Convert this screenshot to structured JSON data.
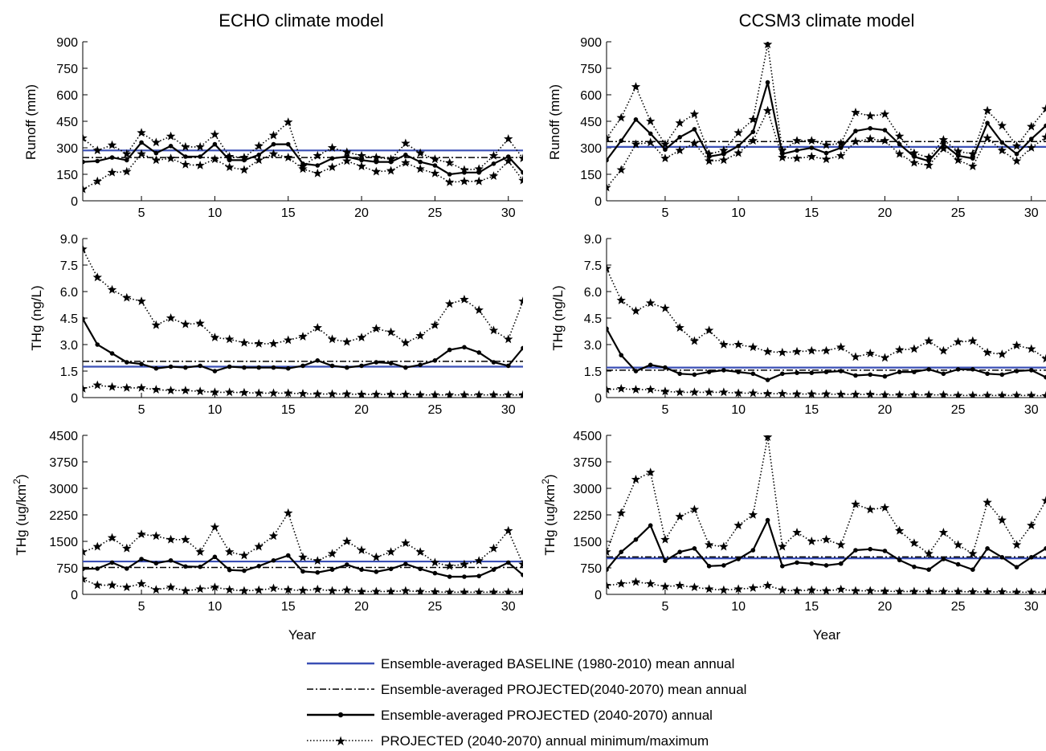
{
  "column_titles": [
    "ECHO climate model",
    "CCSM3 climate model"
  ],
  "xlabel": "Year",
  "ylabels": {
    "runoff": "Runoff (mm)",
    "thg_conc": "THg (ng/L)",
    "thg_flux_main": "THg (ug/km",
    "thg_flux_sup": "2",
    "thg_flux_end": ")"
  },
  "legend": [
    {
      "label": "Ensemble-averaged BASELINE (1980-2010) mean annual",
      "style": "baseline"
    },
    {
      "label": "Ensemble-averaged PROJECTED(2040-2070) mean annual",
      "style": "projmean"
    },
    {
      "label": "Ensemble-averaged PROJECTED (2040-2070) annual",
      "style": "annual"
    },
    {
      "label": "PROJECTED (2040-2070) annual minimum/maximum",
      "style": "minmax"
    }
  ],
  "colors": {
    "baseline": "#3a4fb5",
    "black": "#000000"
  },
  "chart_data": [
    {
      "id": "echo-runoff",
      "type": "line",
      "model": "ECHO climate model",
      "ylabel": "Runoff (mm)",
      "xlabel": "",
      "xlim": [
        1,
        31
      ],
      "ylim": [
        0,
        900
      ],
      "xticks": [
        5,
        10,
        15,
        20,
        25,
        30
      ],
      "yticks": [
        "0",
        "150",
        "300",
        "450",
        "600",
        "750",
        "900"
      ],
      "yticks_values": [
        0,
        150,
        300,
        450,
        600,
        750,
        900
      ],
      "baseline_mean": 285,
      "projected_mean": 245,
      "series": [
        {
          "role": "annual",
          "values": [
            220,
            225,
            245,
            230,
            330,
            270,
            310,
            250,
            250,
            320,
            230,
            230,
            260,
            320,
            320,
            210,
            200,
            240,
            250,
            230,
            220,
            220,
            260,
            220,
            200,
            150,
            160,
            160,
            210,
            250,
            160
          ]
        },
        {
          "role": "max",
          "values": [
            355,
            285,
            315,
            265,
            385,
            330,
            365,
            305,
            305,
            375,
            250,
            245,
            310,
            370,
            445,
            195,
            255,
            300,
            275,
            255,
            245,
            235,
            325,
            270,
            235,
            215,
            175,
            180,
            255,
            350,
            240
          ]
        },
        {
          "role": "min",
          "values": [
            65,
            110,
            160,
            165,
            265,
            230,
            240,
            205,
            200,
            235,
            190,
            175,
            230,
            265,
            245,
            180,
            155,
            190,
            225,
            195,
            165,
            170,
            215,
            180,
            155,
            105,
            110,
            110,
            140,
            225,
            115
          ]
        }
      ]
    },
    {
      "id": "ccsm3-runoff",
      "type": "line",
      "model": "CCSM3 climate model",
      "ylabel": "Runoff (mm)",
      "xlabel": "",
      "xlim": [
        1,
        31
      ],
      "ylim": [
        0,
        900
      ],
      "xticks": [
        5,
        10,
        15,
        20,
        25,
        30
      ],
      "yticks": [
        "0",
        "150",
        "300",
        "450",
        "600",
        "750",
        "900"
      ],
      "yticks_values": [
        0,
        150,
        300,
        450,
        600,
        750,
        900
      ],
      "baseline_mean": 305,
      "projected_mean": 335,
      "series": [
        {
          "role": "annual",
          "values": [
            230,
            340,
            460,
            380,
            290,
            360,
            405,
            250,
            265,
            310,
            390,
            670,
            265,
            285,
            300,
            270,
            300,
            395,
            410,
            400,
            320,
            250,
            225,
            320,
            255,
            240,
            440,
            330,
            265,
            350,
            425
          ]
        },
        {
          "role": "max",
          "values": [
            355,
            470,
            645,
            450,
            320,
            440,
            490,
            265,
            285,
            385,
            460,
            885,
            285,
            340,
            340,
            315,
            325,
            500,
            480,
            490,
            365,
            270,
            245,
            345,
            280,
            265,
            510,
            425,
            310,
            420,
            520
          ]
        },
        {
          "role": "min",
          "values": [
            75,
            175,
            320,
            330,
            240,
            285,
            325,
            225,
            230,
            270,
            340,
            510,
            245,
            240,
            250,
            235,
            255,
            335,
            350,
            340,
            265,
            215,
            200,
            295,
            230,
            195,
            355,
            285,
            225,
            300,
            360
          ]
        }
      ]
    },
    {
      "id": "echo-thg-conc",
      "type": "line",
      "model": "ECHO climate model",
      "ylabel": "THg (ng/L)",
      "xlabel": "",
      "xlim": [
        1,
        31
      ],
      "ylim": [
        0,
        9
      ],
      "xticks": [
        5,
        10,
        15,
        20,
        25,
        30
      ],
      "yticks": [
        "0",
        "1.5",
        "3.0",
        "4.5",
        "6.0",
        "7.5",
        "9.0"
      ],
      "yticks_values": [
        0,
        1.5,
        3,
        4.5,
        6,
        7.5,
        9
      ],
      "baseline_mean": 1.75,
      "projected_mean": 2.05,
      "series": [
        {
          "role": "annual",
          "values": [
            4.45,
            3.0,
            2.5,
            2.0,
            1.9,
            1.65,
            1.75,
            1.7,
            1.8,
            1.5,
            1.75,
            1.7,
            1.7,
            1.7,
            1.65,
            1.8,
            2.1,
            1.8,
            1.7,
            1.8,
            2.0,
            1.95,
            1.7,
            1.85,
            2.1,
            2.7,
            2.85,
            2.55,
            2.0,
            1.8,
            2.8
          ]
        },
        {
          "role": "max",
          "values": [
            8.4,
            6.8,
            6.1,
            5.65,
            5.45,
            4.1,
            4.5,
            4.15,
            4.2,
            3.4,
            3.3,
            3.1,
            3.05,
            3.05,
            3.25,
            3.45,
            3.95,
            3.3,
            3.15,
            3.4,
            3.9,
            3.7,
            3.1,
            3.5,
            4.1,
            5.3,
            5.55,
            4.95,
            3.8,
            3.3,
            5.45
          ]
        },
        {
          "role": "min",
          "values": [
            0.5,
            0.7,
            0.6,
            0.55,
            0.55,
            0.45,
            0.4,
            0.4,
            0.35,
            0.3,
            0.3,
            0.28,
            0.25,
            0.25,
            0.25,
            0.22,
            0.2,
            0.2,
            0.2,
            0.18,
            0.18,
            0.18,
            0.18,
            0.15,
            0.15,
            0.15,
            0.15,
            0.15,
            0.15,
            0.15,
            0.15
          ]
        }
      ]
    },
    {
      "id": "ccsm3-thg-conc",
      "type": "line",
      "model": "CCSM3 climate model",
      "ylabel": "THg (ng/L)",
      "xlabel": "",
      "xlim": [
        1,
        31
      ],
      "ylim": [
        0,
        9
      ],
      "xticks": [
        5,
        10,
        15,
        20,
        25,
        30
      ],
      "yticks": [
        "0",
        "1.5",
        "3.0",
        "4.5",
        "6.0",
        "7.5",
        "9.0"
      ],
      "yticks_values": [
        0,
        1.5,
        3,
        4.5,
        6,
        7.5,
        9
      ],
      "baseline_mean": 1.7,
      "projected_mean": 1.55,
      "series": [
        {
          "role": "annual",
          "values": [
            3.9,
            2.4,
            1.5,
            1.85,
            1.7,
            1.35,
            1.3,
            1.45,
            1.55,
            1.45,
            1.35,
            1.0,
            1.35,
            1.4,
            1.4,
            1.45,
            1.5,
            1.25,
            1.3,
            1.2,
            1.45,
            1.45,
            1.6,
            1.35,
            1.6,
            1.6,
            1.35,
            1.3,
            1.5,
            1.55,
            1.15
          ]
        },
        {
          "role": "max",
          "values": [
            7.3,
            5.5,
            4.9,
            5.35,
            5.05,
            3.95,
            3.2,
            3.8,
            3.0,
            3.0,
            2.85,
            2.6,
            2.55,
            2.6,
            2.65,
            2.65,
            2.85,
            2.3,
            2.5,
            2.25,
            2.7,
            2.75,
            3.2,
            2.65,
            3.15,
            3.2,
            2.55,
            2.45,
            2.95,
            2.75,
            2.2
          ]
        },
        {
          "role": "min",
          "values": [
            0.45,
            0.5,
            0.45,
            0.45,
            0.35,
            0.3,
            0.3,
            0.3,
            0.3,
            0.25,
            0.25,
            0.22,
            0.22,
            0.2,
            0.2,
            0.2,
            0.18,
            0.18,
            0.18,
            0.15,
            0.15,
            0.15,
            0.15,
            0.15,
            0.12,
            0.12,
            0.12,
            0.12,
            0.12,
            0.12,
            0.1
          ]
        }
      ]
    },
    {
      "id": "echo-thg-flux",
      "type": "line",
      "model": "ECHO climate model",
      "ylabel": "THg (ug/km2)",
      "xlabel": "Year",
      "xlim": [
        1,
        31
      ],
      "ylim": [
        0,
        4500
      ],
      "xticks": [
        5,
        10,
        15,
        20,
        25,
        30
      ],
      "yticks": [
        "0",
        "750",
        "1500",
        "2250",
        "3000",
        "3750",
        "4500"
      ],
      "yticks_values": [
        0,
        750,
        1500,
        2250,
        3000,
        3750,
        4500
      ],
      "baseline_mean": 930,
      "projected_mean": 760,
      "series": [
        {
          "role": "annual",
          "values": [
            720,
            730,
            900,
            730,
            1000,
            880,
            960,
            790,
            780,
            1060,
            690,
            670,
            800,
            960,
            1100,
            650,
            620,
            700,
            840,
            700,
            640,
            720,
            860,
            720,
            600,
            500,
            500,
            520,
            700,
            900,
            550
          ]
        },
        {
          "role": "max",
          "values": [
            1200,
            1350,
            1600,
            1300,
            1700,
            1650,
            1550,
            1550,
            1200,
            1900,
            1200,
            1100,
            1350,
            1650,
            2300,
            1050,
            950,
            1150,
            1500,
            1250,
            1050,
            1200,
            1450,
            1200,
            900,
            800,
            850,
            950,
            1300,
            1800,
            850
          ]
        },
        {
          "role": "min",
          "values": [
            430,
            260,
            260,
            200,
            300,
            130,
            200,
            100,
            150,
            200,
            130,
            100,
            120,
            170,
            130,
            110,
            140,
            100,
            120,
            80,
            80,
            80,
            100,
            80,
            70,
            60,
            60,
            60,
            60,
            60,
            60
          ]
        }
      ]
    },
    {
      "id": "ccsm3-thg-flux",
      "type": "line",
      "model": "CCSM3 climate model",
      "ylabel": "THg (ug/km2)",
      "xlabel": "Year",
      "xlim": [
        1,
        31
      ],
      "ylim": [
        0,
        4500
      ],
      "xticks": [
        5,
        10,
        15,
        20,
        25,
        30
      ],
      "yticks": [
        "0",
        "750",
        "1500",
        "2250",
        "3000",
        "3750",
        "4500"
      ],
      "yticks_values": [
        0,
        750,
        1500,
        2250,
        3000,
        3750,
        4500
      ],
      "baseline_mean": 1020,
      "projected_mean": 1060,
      "series": [
        {
          "role": "annual",
          "values": [
            700,
            1200,
            1550,
            1950,
            950,
            1200,
            1300,
            800,
            820,
            1000,
            1250,
            2100,
            800,
            900,
            870,
            820,
            870,
            1250,
            1280,
            1230,
            970,
            780,
            700,
            1000,
            850,
            700,
            1300,
            1050,
            770,
            1050,
            1300
          ]
        },
        {
          "role": "max",
          "values": [
            1200,
            2300,
            3250,
            3450,
            1550,
            2200,
            2400,
            1400,
            1350,
            1950,
            2250,
            4450,
            1350,
            1750,
            1500,
            1550,
            1400,
            2550,
            2400,
            2450,
            1800,
            1450,
            1150,
            1750,
            1400,
            1150,
            2600,
            2100,
            1400,
            1950,
            2650
          ]
        },
        {
          "role": "min",
          "values": [
            250,
            300,
            350,
            300,
            220,
            250,
            200,
            150,
            120,
            150,
            180,
            250,
            120,
            100,
            120,
            100,
            140,
            100,
            100,
            90,
            80,
            80,
            80,
            80,
            80,
            70,
            70,
            70,
            60,
            60,
            60
          ]
        }
      ]
    }
  ]
}
